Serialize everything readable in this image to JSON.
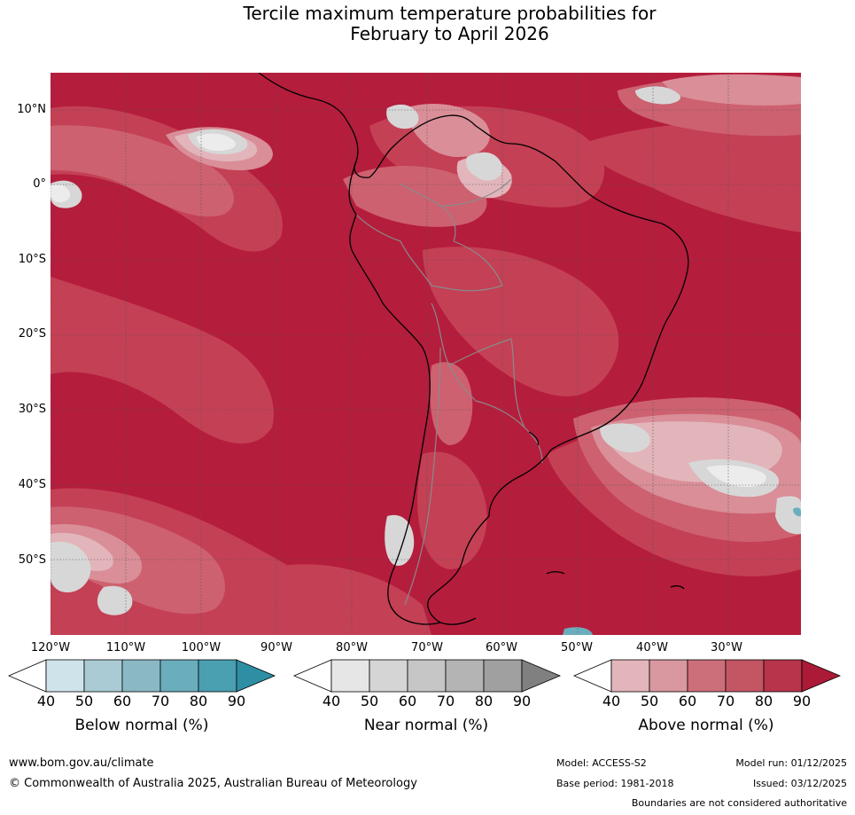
{
  "title": {
    "line1": "Tercile maximum temperature probabilities for",
    "line2": "February to April 2026"
  },
  "map": {
    "lat_labels": [
      "10°N",
      "0°",
      "10°S",
      "20°S",
      "30°S",
      "40°S",
      "50°S"
    ],
    "lon_labels": [
      "120°W",
      "110°W",
      "100°W",
      "90°W",
      "80°W",
      "70°W",
      "60°W",
      "50°W",
      "40°W",
      "30°W"
    ],
    "dominant_category": "Above normal",
    "dominant_probability_range": "80-90",
    "colors": {
      "above_80": "#b51d3c",
      "above_70": "#c44055",
      "above_60": "#cd6170",
      "above_50": "#d98e98",
      "above_40": "#e2b5bb",
      "near_40_50": "#d7d7d7",
      "near_lighter": "#e8e8e8",
      "below": "#5aa8b9",
      "coastline": "#000000",
      "boundaries": "#8a8a8a",
      "graticule": "#555555"
    }
  },
  "legends": [
    {
      "title": "Below normal (%)",
      "ticks": [
        "40",
        "50",
        "60",
        "70",
        "80",
        "90"
      ],
      "colors": [
        "#ffffff",
        "#cfe4ea",
        "#aacbd3",
        "#8ab9c5",
        "#6aaebd",
        "#4a9fb0",
        "#2e8ea4"
      ]
    },
    {
      "title": "Near normal (%)",
      "ticks": [
        "40",
        "50",
        "60",
        "70",
        "80",
        "90"
      ],
      "colors": [
        "#ffffff",
        "#e6e6e6",
        "#d5d5d5",
        "#c6c6c6",
        "#b4b4b4",
        "#a0a0a0",
        "#808080"
      ]
    },
    {
      "title": "Above normal (%)",
      "ticks": [
        "40",
        "50",
        "60",
        "70",
        "80",
        "90"
      ],
      "colors": [
        "#ffffff",
        "#e2b5bb",
        "#d9979f",
        "#cd6f7a",
        "#c45563",
        "#b8344a",
        "#ab1a36"
      ]
    }
  ],
  "footer": {
    "url": "www.bom.gov.au/climate",
    "copyright": "© Commonwealth of Australia 2025, Australian Bureau of Meteorology",
    "model": "Model: ACCESS-S2",
    "base_period": "Base period: 1981-2018",
    "model_run": "Model run: 01/12/2025",
    "issued": "Issued: 03/12/2025",
    "disclaimer": "Boundaries are not considered authoritative"
  }
}
